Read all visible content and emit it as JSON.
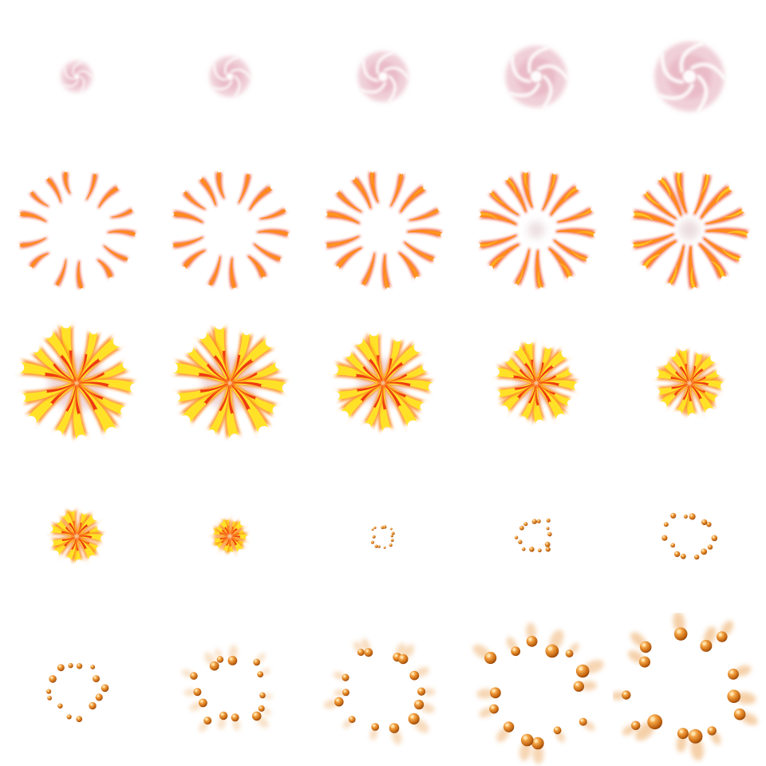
{
  "sprite_sheet": {
    "columns": 5,
    "rows": 5,
    "colors": {
      "smoke_pink": "#e3a7b8",
      "smoke_white": "#ffffff",
      "ember_red": "#ee3b12",
      "ember_orange": "#ff8a1c",
      "ember_yellow": "#ffe227",
      "bead_dark": "#b4560f",
      "bead_mid": "#e68a28",
      "bead_light": "#ffe3a8"
    },
    "frames": [
      {
        "phase": "swirl",
        "level": 0.45
      },
      {
        "phase": "swirl",
        "level": 0.58
      },
      {
        "phase": "swirl",
        "level": 0.72
      },
      {
        "phase": "swirl",
        "level": 0.88
      },
      {
        "phase": "swirl",
        "level": 1.0
      },
      {
        "phase": "streaks",
        "level": 0.35
      },
      {
        "phase": "streaks",
        "level": 0.48
      },
      {
        "phase": "streaks",
        "level": 0.6
      },
      {
        "phase": "streaks",
        "level": 0.75
      },
      {
        "phase": "streaks",
        "level": 0.9
      },
      {
        "phase": "burst",
        "level": 1.0
      },
      {
        "phase": "burst",
        "level": 0.98
      },
      {
        "phase": "burst",
        "level": 0.86
      },
      {
        "phase": "burst",
        "level": 0.72
      },
      {
        "phase": "burst",
        "level": 0.6
      },
      {
        "phase": "burst",
        "level": 0.48
      },
      {
        "phase": "burst",
        "level": 0.3
      },
      {
        "phase": "beads",
        "level": 0.3
      },
      {
        "phase": "beads",
        "level": 0.42
      },
      {
        "phase": "beads",
        "level": 0.52
      },
      {
        "phase": "beads",
        "level": 0.6
      },
      {
        "phase": "beads",
        "level": 0.72
      },
      {
        "phase": "beads",
        "level": 0.86
      },
      {
        "phase": "beads",
        "level": 1.0
      },
      {
        "phase": "beads",
        "level": 1.12
      }
    ]
  }
}
